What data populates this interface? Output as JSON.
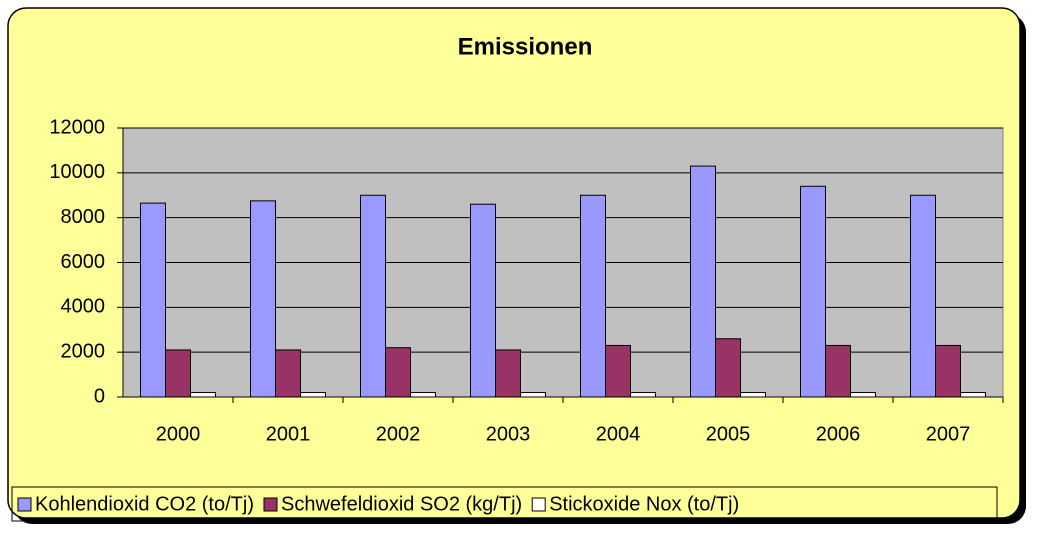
{
  "chart_data": {
    "type": "bar",
    "title": "Emissionen",
    "categories": [
      "2000",
      "2001",
      "2002",
      "2003",
      "2004",
      "2005",
      "2006",
      "2007"
    ],
    "series": [
      {
        "name": "Kohlendioxid CO2 (to/Tj)",
        "color": "#9999ff",
        "values": [
          8650,
          8750,
          9000,
          8600,
          9000,
          10300,
          9400,
          9000
        ]
      },
      {
        "name": "Schwefeldioxid SO2 (kg/Tj)",
        "color": "#993366",
        "values": [
          2100,
          2100,
          2200,
          2100,
          2300,
          2600,
          2300,
          2300
        ]
      },
      {
        "name": "Stickoxide Nox (to/Tj)",
        "color": "#ffffff",
        "values": [
          200,
          200,
          200,
          200,
          200,
          200,
          200,
          200
        ]
      }
    ],
    "ylim": [
      0,
      12000
    ],
    "yticks": [
      0,
      2000,
      4000,
      6000,
      8000,
      10000,
      12000
    ],
    "grid": true,
    "legend": "bottom"
  }
}
